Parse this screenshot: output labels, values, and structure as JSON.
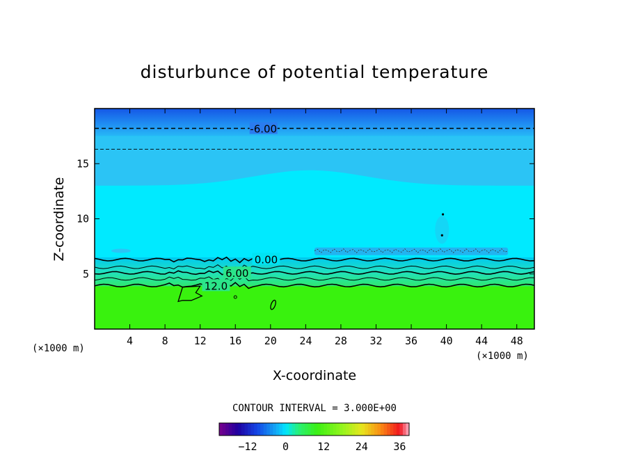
{
  "chart_data": {
    "type": "heatmap",
    "title": "disturbunce of potential temperature",
    "xlabel": "X-coordinate",
    "ylabel": "Z-coordinate",
    "x_unit_label": "(×1000 m)",
    "y_unit_label": "(×1000 m)",
    "xlim": [
      0,
      50
    ],
    "ylim": [
      0,
      20
    ],
    "x_ticks": [
      4,
      8,
      12,
      16,
      20,
      24,
      28,
      32,
      36,
      40,
      44,
      48
    ],
    "y_ticks": [
      5,
      10,
      15
    ],
    "contour_interval_text": "CONTOUR INTERVAL = 3.000E+00",
    "contour_labels": [
      "-6.00",
      "0.00",
      "6.00",
      "12.0"
    ],
    "colorbar": {
      "range": [
        -21,
        39
      ],
      "ticks": [
        -12,
        0,
        12,
        24,
        36
      ]
    },
    "colors": {
      "top_band": "#1a6ef0",
      "mid_band": "#2bc4f5",
      "main_field": "#00eaff",
      "low_field": "#39f20e"
    }
  }
}
